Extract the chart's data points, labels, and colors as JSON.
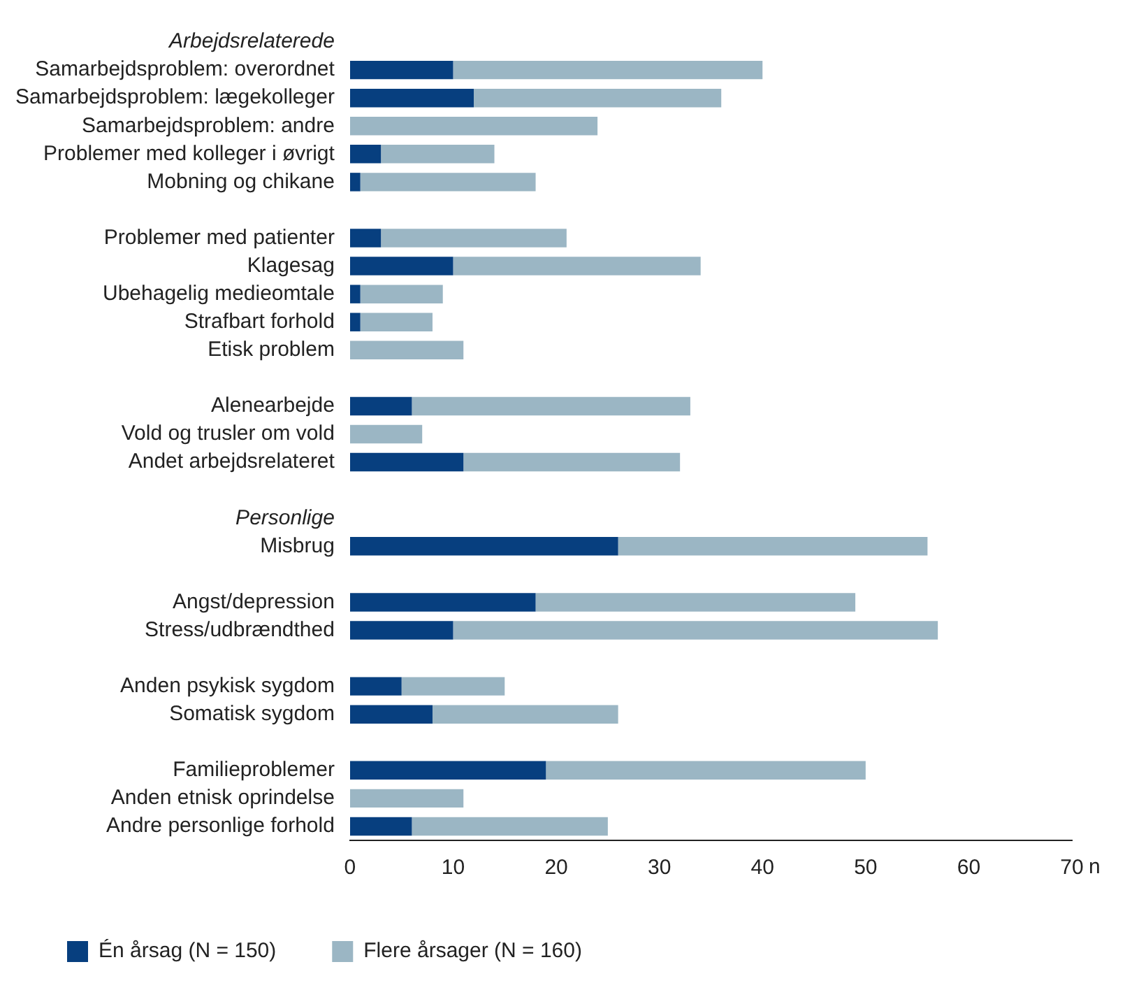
{
  "chart_data": {
    "type": "bar",
    "orientation": "horizontal",
    "stacked": true,
    "xlabel": "n",
    "categories": [
      "Arbejdsrelaterede",
      "Samarbejdsproblem: overordnet",
      "Samarbejdsproblem: lægekolleger",
      "Samarbejdsproblem: andre",
      "Problemer med kolleger i øvrigt",
      "Mobning og chikane",
      null,
      "Problemer med patienter",
      "Klagesag",
      "Ubehagelig medieomtale",
      "Strafbart forhold",
      "Etisk problem",
      null,
      "Alenearbejde",
      "Vold og trusler om vold",
      "Andet arbejdsrelateret",
      null,
      "Personlige",
      "Misbrug",
      null,
      "Angst/depression",
      "Stress/udbrændthed",
      null,
      "Anden psykisk sygdom",
      "Somatisk sygdom",
      null,
      "Familieproblemer",
      "Anden etnisk oprindelse",
      "Andre personlige forhold"
    ],
    "series": [
      {
        "name": "Én årsag (N = 150)",
        "color": "#073f7f",
        "values": [
          null,
          10,
          12,
          0,
          3,
          1,
          null,
          3,
          10,
          1,
          1,
          0,
          null,
          6,
          0,
          11,
          null,
          null,
          26,
          null,
          18,
          10,
          null,
          5,
          8,
          null,
          19,
          0,
          6
        ]
      },
      {
        "name": "Flere årsager (N = 160)",
        "color": "#9bb6c4",
        "values": [
          null,
          30,
          24,
          24,
          11,
          17,
          null,
          18,
          24,
          8,
          7,
          11,
          null,
          27,
          7,
          21,
          null,
          null,
          30,
          null,
          31,
          47,
          null,
          10,
          18,
          null,
          31,
          11,
          19
        ]
      }
    ],
    "xlim": [
      0,
      70
    ],
    "xticks": [
      0,
      10,
      20,
      30,
      40,
      50,
      60,
      70
    ],
    "grid": false,
    "legend": "bottom"
  }
}
